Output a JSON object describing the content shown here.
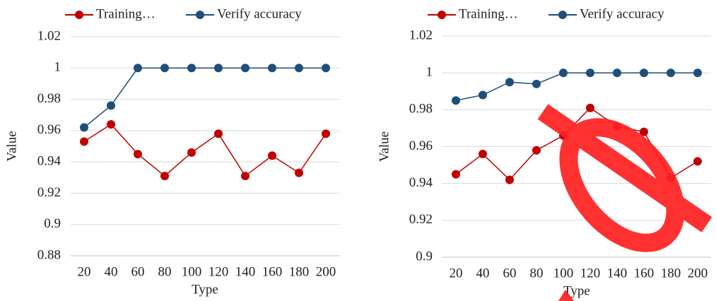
{
  "chart_data": [
    {
      "type": "line",
      "x_label": "Type",
      "y_label": "Value",
      "categories": [
        "20",
        "40",
        "60",
        "80",
        "100",
        "120",
        "140",
        "160",
        "180",
        "200"
      ],
      "series": [
        {
          "name": "Training…",
          "color": "#c00000",
          "values": [
            0.953,
            0.964,
            0.945,
            0.931,
            0.946,
            0.958,
            0.931,
            0.944,
            0.933,
            0.958
          ]
        },
        {
          "name": "Verify accuracy",
          "color": "#1f4e79",
          "values": [
            0.962,
            0.976,
            1,
            1,
            1,
            1,
            1,
            1,
            1,
            1
          ]
        }
      ],
      "ylim": [
        0.88,
        1.02
      ],
      "yticks": [
        0.88,
        0.9,
        0.92,
        0.94,
        0.96,
        0.98,
        1,
        1.02
      ],
      "grid": true,
      "legend": "top"
    },
    {
      "type": "line",
      "x_label": "Type",
      "y_label": "Value",
      "categories": [
        "20",
        "40",
        "60",
        "80",
        "100",
        "120",
        "140",
        "160",
        "180",
        "200"
      ],
      "series": [
        {
          "name": "Training…",
          "color": "#c00000",
          "values": [
            0.945,
            0.956,
            0.942,
            0.958,
            0.966,
            0.981,
            0.971,
            0.968,
            0.943,
            0.952
          ]
        },
        {
          "name": "Verify accuracy",
          "color": "#1f4e79",
          "values": [
            0.985,
            0.988,
            0.995,
            0.994,
            1,
            1,
            1,
            1,
            1,
            1
          ]
        }
      ],
      "ylim": [
        0.9,
        1.02
      ],
      "yticks": [
        0.9,
        0.92,
        0.94,
        0.96,
        0.98,
        1,
        1.02
      ],
      "grid": true,
      "legend": "top"
    }
  ]
}
